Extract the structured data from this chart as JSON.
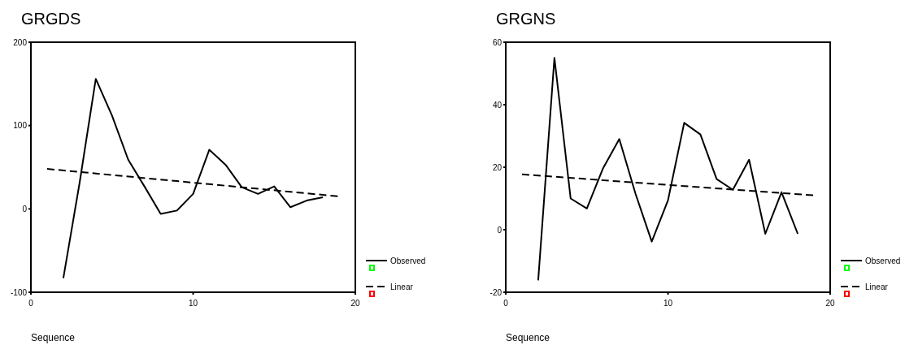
{
  "chart_data": [
    {
      "type": "line",
      "title": "GRGDS",
      "xlabel": "Sequence",
      "xlim": [
        0,
        20
      ],
      "xticks": [
        0,
        10,
        20
      ],
      "ylim": [
        -100,
        200
      ],
      "yticks": [
        -100,
        0,
        100,
        200
      ],
      "grid": false,
      "legend": "right",
      "series": [
        {
          "name": "Observed",
          "color": "#000000",
          "line_style": "solid",
          "x": [
            2,
            3,
            4,
            5,
            6,
            7,
            8,
            9,
            10,
            11,
            12,
            13,
            14,
            15,
            16,
            17,
            18
          ],
          "values": [
            -83,
            31,
            156,
            112,
            59,
            27,
            -6,
            -2,
            18,
            71,
            53,
            26,
            18,
            27,
            2,
            10,
            14
          ]
        },
        {
          "name": "Linear",
          "color": "#000000",
          "line_style": "dashed",
          "x": [
            1,
            19
          ],
          "values": [
            48,
            15
          ]
        }
      ]
    },
    {
      "type": "line",
      "title": "GRGNS",
      "xlabel": "Sequence",
      "xlim": [
        0,
        20
      ],
      "xticks": [
        0,
        10,
        20
      ],
      "ylim": [
        -20,
        60
      ],
      "yticks": [
        -20,
        0,
        20,
        40,
        60
      ],
      "grid": false,
      "legend": "right",
      "series": [
        {
          "name": "Observed",
          "color": "#000000",
          "line_style": "solid",
          "x": [
            2,
            3,
            4,
            5,
            6,
            7,
            8,
            9,
            10,
            11,
            12,
            13,
            14,
            15,
            16,
            17,
            18
          ],
          "values": [
            -16.2,
            55,
            10,
            6.8,
            19.7,
            29,
            11.5,
            -3.8,
            9.4,
            34.2,
            30.5,
            16.2,
            12.8,
            22.4,
            -1.3,
            12,
            -1.3
          ]
        },
        {
          "name": "Linear",
          "color": "#000000",
          "line_style": "dashed",
          "x": [
            1,
            19
          ],
          "values": [
            17.7,
            11
          ]
        }
      ]
    }
  ]
}
